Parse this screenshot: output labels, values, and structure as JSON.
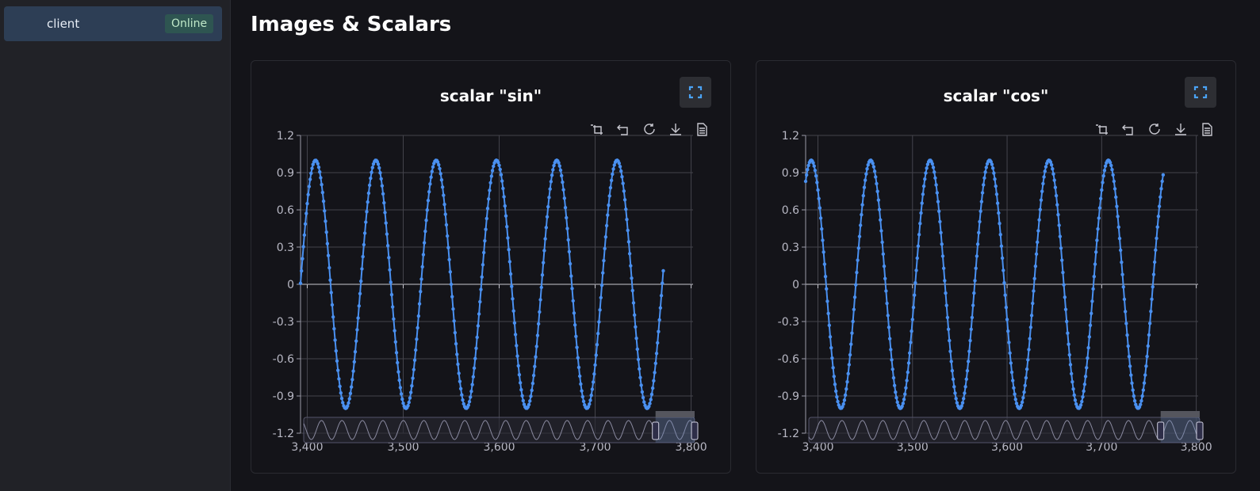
{
  "sidebar": {
    "client": {
      "name": "client",
      "status": "Online"
    }
  },
  "page": {
    "title": "Images & Scalars"
  },
  "colors": {
    "series": "#4a90f0",
    "grid": "#44444c",
    "slider_series": "#8a8aa0"
  },
  "toolbar_icons": [
    "zoom-select-icon",
    "zoom-reset-icon",
    "restore-icon",
    "download-icon",
    "data-view-icon"
  ],
  "chart_data": [
    {
      "type": "line",
      "title": "scalar \"sin\"",
      "function": "sin(step/10)",
      "x_range": [
        3393,
        3771
      ],
      "xlim": [
        3393,
        3802
      ],
      "ylim": [
        -1.2,
        1.2
      ],
      "yticks": [
        "1.2",
        "0.9",
        "0.6",
        "0.3",
        "0",
        "-0.3",
        "-0.6",
        "-0.9",
        "-1.2"
      ],
      "xticks": [
        "3,400",
        "3,500",
        "3,600",
        "3,700",
        "3,800"
      ],
      "grid": true,
      "datazoom": {
        "start_pct": 90,
        "end_pct": 100
      }
    },
    {
      "type": "line",
      "title": "scalar \"cos\"",
      "function": "cos(step/10)",
      "x_range": [
        3387,
        3765
      ],
      "xlim": [
        3387,
        3802
      ],
      "ylim": [
        -1.2,
        1.2
      ],
      "yticks": [
        "1.2",
        "0.9",
        "0.6",
        "0.3",
        "0",
        "-0.3",
        "-0.6",
        "-0.9",
        "-1.2"
      ],
      "xticks": [
        "3,400",
        "3,500",
        "3,600",
        "3,700",
        "3,800"
      ],
      "grid": true,
      "datazoom": {
        "start_pct": 90,
        "end_pct": 100
      }
    }
  ]
}
